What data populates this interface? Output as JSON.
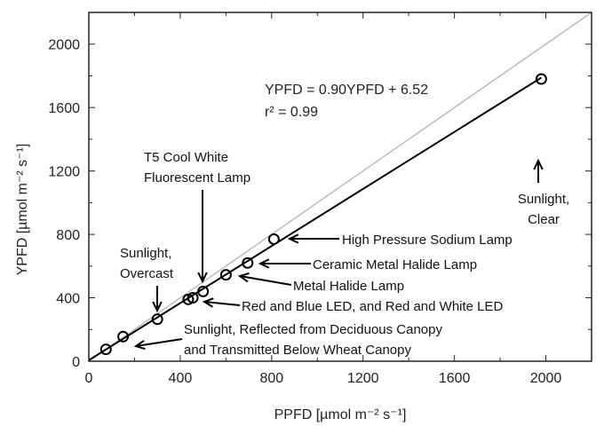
{
  "chart_data": {
    "type": "scatter",
    "title": "",
    "xlabel": "PPFD [µmol m⁻² s⁻¹]",
    "ylabel": "YPFD [µmol m⁻² s⁻¹]",
    "xlim": [
      0,
      2200
    ],
    "ylim": [
      0,
      2200
    ],
    "xticks": [
      "0",
      "400",
      "800",
      "1200",
      "1600",
      "2000"
    ],
    "yticks": [
      "0",
      "400",
      "800",
      "1200",
      "1600",
      "2000"
    ],
    "grid": false,
    "points": [
      {
        "x": 75,
        "y": 75
      },
      {
        "x": 150,
        "y": 155
      },
      {
        "x": 300,
        "y": 265
      },
      {
        "x": 435,
        "y": 390
      },
      {
        "x": 455,
        "y": 400
      },
      {
        "x": 500,
        "y": 440
      },
      {
        "x": 600,
        "y": 545
      },
      {
        "x": 695,
        "y": 620
      },
      {
        "x": 810,
        "y": 770
      },
      {
        "x": 1980,
        "y": 1780
      }
    ],
    "fit_line": {
      "slope": 0.9,
      "intercept": 6.52,
      "color": "#000000"
    },
    "reference_line": {
      "slope": 1,
      "intercept": 0,
      "color": "#bbbbbb"
    },
    "equation": "YPFD = 0.90YPFD + 6.52",
    "r2": "r² = 0.99",
    "annotations": [
      {
        "lines": [
          "Sunlight,",
          "Overcast"
        ]
      },
      {
        "lines": [
          "T5 Cool White",
          "Fluorescent Lamp"
        ]
      },
      {
        "lines": [
          "Sunlight,",
          "Clear"
        ]
      },
      {
        "lines": [
          "High Pressure Sodium Lamp"
        ]
      },
      {
        "lines": [
          "Ceramic Metal Halide Lamp"
        ]
      },
      {
        "lines": [
          "Metal Halide Lamp"
        ]
      },
      {
        "lines": [
          "Red and Blue LED, and Red and White LED"
        ]
      },
      {
        "lines": [
          "Sunlight, Reflected from Deciduous Canopy",
          "and Transmitted Below Wheat Canopy"
        ]
      }
    ]
  }
}
